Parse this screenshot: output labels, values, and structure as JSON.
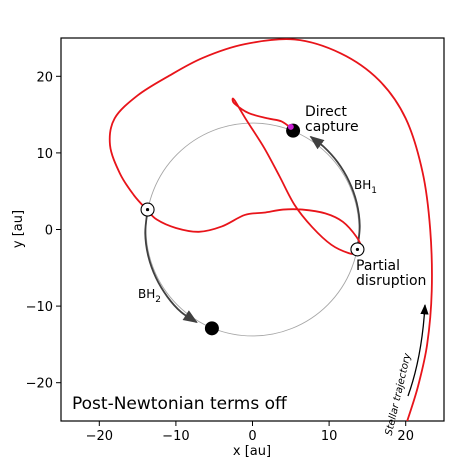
{
  "chart_data": {
    "type": "line",
    "title": "",
    "xlabel": "x [au]",
    "ylabel": "y [au]",
    "xlim": [
      -25,
      25
    ],
    "ylim": [
      -25,
      25
    ],
    "xticks": [
      -20,
      -10,
      0,
      10,
      20
    ],
    "yticks": [
      -20,
      -10,
      0,
      10,
      20
    ],
    "xtick_labels": [
      "−20",
      "−10",
      "0",
      "10",
      "20"
    ],
    "ytick_labels": [
      "−20",
      "−10",
      "0",
      "10",
      "20"
    ],
    "grid": false,
    "legend": "none",
    "colors": {
      "stellar_trajectory": "#e8141a",
      "binary_orbit": "#a6a6a6",
      "bh_path": "#404040",
      "capture_marker": "#c71fd1",
      "text": "#000000"
    },
    "series": [
      {
        "role": "stellar-trajectory",
        "points": [
          [
            20.2,
            -25.0
          ],
          [
            21.6,
            -20.5
          ],
          [
            22.8,
            -15.0
          ],
          [
            23.4,
            -8.0
          ],
          [
            23.2,
            0.0
          ],
          [
            22.2,
            7.5
          ],
          [
            20.0,
            14.5
          ],
          [
            16.5,
            19.5
          ],
          [
            11.5,
            23.0
          ],
          [
            5.5,
            24.8
          ],
          [
            -1.0,
            24.2
          ],
          [
            -6.5,
            22.4
          ],
          [
            -11.0,
            20.0
          ],
          [
            -15.0,
            17.5
          ],
          [
            -18.0,
            14.5
          ],
          [
            -18.6,
            11.0
          ],
          [
            -17.3,
            7.3
          ],
          [
            -15.5,
            4.5
          ],
          [
            -13.8,
            2.6
          ],
          [
            -12.5,
            1.3
          ],
          [
            -10.0,
            0.2
          ],
          [
            -7.0,
            -0.3
          ],
          [
            -4.0,
            0.4
          ],
          [
            -1.0,
            1.9
          ],
          [
            1.5,
            2.2
          ],
          [
            4.0,
            2.6
          ],
          [
            6.5,
            2.6
          ],
          [
            9.5,
            2.1
          ],
          [
            11.8,
            1.0
          ],
          [
            13.6,
            -1.0
          ],
          [
            14.2,
            -2.4
          ],
          [
            13.7,
            -3.1
          ],
          [
            12.6,
            -3.1
          ],
          [
            10.3,
            -2.0
          ],
          [
            7.8,
            0.3
          ],
          [
            5.5,
            3.2
          ],
          [
            3.5,
            7.0
          ],
          [
            1.5,
            10.7
          ],
          [
            -0.8,
            14.3
          ],
          [
            -2.3,
            16.8
          ],
          [
            -2.6,
            17.0
          ],
          [
            -2.3,
            16.4
          ],
          [
            -0.5,
            15.2
          ],
          [
            2.0,
            14.5
          ],
          [
            3.8,
            14.1
          ],
          [
            5.3,
            13.0
          ]
        ]
      },
      {
        "role": "bh1-path",
        "points": [
          [
            13.7,
            -2.5
          ],
          [
            14.0,
            0.5
          ],
          [
            13.6,
            3.5
          ],
          [
            12.6,
            6.3
          ],
          [
            11.1,
            8.8
          ],
          [
            9.3,
            10.8
          ],
          [
            7.6,
            12.1
          ]
        ]
      },
      {
        "role": "bh2-path",
        "points": [
          [
            -13.7,
            2.5
          ],
          [
            -14.0,
            -0.5
          ],
          [
            -13.6,
            -3.5
          ],
          [
            -12.6,
            -6.3
          ],
          [
            -11.1,
            -8.8
          ],
          [
            -9.3,
            -10.8
          ],
          [
            -7.3,
            -12.1
          ]
        ]
      }
    ],
    "binary_orbit": {
      "center": [
        0,
        0
      ],
      "radius": 13.9
    },
    "markers": {
      "bh1_start": [
        13.7,
        -2.6
      ],
      "bh2_start": [
        -13.7,
        2.6
      ],
      "bh1_end": [
        5.3,
        12.9
      ],
      "bh2_end": [
        -5.3,
        -12.9
      ],
      "capture_point": [
        5.0,
        13.4
      ]
    },
    "annotations": {
      "direct_capture": [
        "Direct",
        "capture"
      ],
      "partial_disruption": [
        "Partial",
        "disruption"
      ],
      "bh1": {
        "base": "BH",
        "sub": "1"
      },
      "bh2": {
        "base": "BH",
        "sub": "2"
      },
      "stellar_trajectory": "Stellar trajectory",
      "panel_label": "Post-Newtonian terms off"
    }
  }
}
